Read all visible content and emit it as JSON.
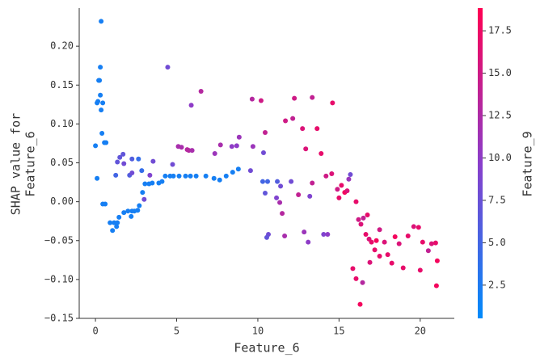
{
  "chart_data": {
    "type": "scatter",
    "xlabel": "Feature_6",
    "ylabel": [
      "SHAP value for",
      "Feature_6"
    ],
    "xlim": [
      -1.0,
      22.1
    ],
    "xticks": [
      0,
      5,
      10,
      15,
      20
    ],
    "ylim": [
      -0.15,
      0.249
    ],
    "yticks": [
      {
        "value": -0.15,
        "label": "−0.15"
      },
      {
        "value": -0.1,
        "label": "−0.10"
      },
      {
        "value": -0.05,
        "label": "−0.05"
      },
      {
        "value": 0,
        "label": "0.00"
      },
      {
        "value": 0.05,
        "label": "0.05"
      },
      {
        "value": 0.1,
        "label": "0.10"
      },
      {
        "value": 0.15,
        "label": "0.15"
      },
      {
        "value": 0.2,
        "label": "0.20"
      }
    ],
    "x": [
      0,
      0.1,
      0.15,
      0.2,
      0.25,
      0.3,
      0.35,
      0.3,
      0.35,
      0.45,
      0.4,
      0.55,
      0.65,
      0.1,
      0.45,
      0.6,
      0.9,
      1.15,
      1.05,
      1.35,
      1.3,
      1.45,
      1.75,
      2.0,
      2.2,
      2.25,
      2.4,
      2.6,
      2.7,
      2.9,
      3.05,
      3.3,
      3.5,
      3.9,
      4.1,
      4.3,
      4.6,
      4.8,
      5.15,
      5.55,
      5.85,
      6.2,
      6.8,
      7.3,
      7.65,
      8.05,
      8.45,
      8.8,
      1.5,
      1.7,
      1.35,
      1.25,
      2.1,
      1.75,
      2.25,
      2.65,
      2.25,
      2.85,
      3.0,
      3.35,
      3.55,
      4.45,
      4.75,
      5.1,
      5.3,
      5.65,
      5.9,
      5.75,
      6.5,
      5.95,
      7.35,
      7.7,
      8.4,
      8.7,
      8.85,
      9.65,
      9.55,
      9.7,
      10.2,
      10.35,
      10.45,
      10.3,
      10.6,
      10.45,
      10.65,
      10.55,
      11.2,
      11.4,
      11.15,
      11.35,
      11.5,
      11.7,
      11.65,
      12.05,
      12.25,
      12.15,
      12.5,
      12.75,
      12.95,
      13.2,
      13.35,
      13.35,
      12.85,
      13.1,
      13.65,
      13.9,
      14.05,
      14.3,
      14.2,
      14.55,
      14.6,
      14.9,
      15.0,
      15.15,
      15.35,
      15.5,
      15.6,
      15.7,
      15.85,
      16.05,
      16.35,
      16.5,
      16.45,
      16.3,
      16.65,
      16.85,
      17.0,
      17.3,
      17.5,
      17.8,
      18.0,
      18.25,
      18.45,
      18.7,
      18.95,
      19.25,
      19.6,
      19.9,
      20.15,
      20.5,
      20.7,
      20.95,
      21.0,
      21.05,
      20.0,
      16.9,
      17.5,
      16.05,
      16.2,
      16.75,
      17.2
    ],
    "values": [
      0.072,
      0.127,
      0.129,
      0.156,
      0.156,
      0.173,
      0.232,
      0.137,
      0.118,
      0.127,
      0.088,
      0.076,
      0.076,
      0.03,
      -0.003,
      -0.003,
      -0.027,
      -0.027,
      -0.037,
      -0.027,
      -0.032,
      -0.02,
      -0.014,
      -0.012,
      -0.019,
      -0.012,
      -0.012,
      -0.011,
      -0.005,
      0.012,
      0.023,
      0.023,
      0.024,
      0.024,
      0.026,
      0.033,
      0.033,
      0.033,
      0.033,
      0.033,
      0.033,
      0.033,
      0.033,
      0.03,
      0.028,
      0.033,
      0.038,
      0.042,
      0.057,
      0.061,
      0.051,
      0.034,
      0.034,
      0.049,
      0.055,
      0.055,
      0.037,
      0.04,
      0.003,
      0.034,
      0.052,
      0.173,
      0.048,
      0.071,
      0.07,
      0.067,
      0.124,
      0.066,
      0.142,
      0.066,
      0.062,
      0.073,
      0.071,
      0.072,
      0.083,
      0.132,
      0.04,
      0.071,
      0.13,
      0.063,
      0.089,
      0.026,
      0.026,
      0.011,
      -0.042,
      -0.046,
      0.026,
      0.02,
      0.005,
      -0.001,
      -0.015,
      0.104,
      -0.044,
      0.026,
      0.133,
      0.107,
      0.009,
      0.094,
      0.068,
      0.007,
      0.134,
      0.024,
      -0.039,
      -0.052,
      0.094,
      0.062,
      -0.042,
      -0.042,
      0.033,
      0.036,
      0.127,
      0.016,
      0.005,
      0.021,
      0.012,
      0.014,
      0.029,
      0.035,
      -0.086,
      -0.099,
      -0.029,
      -0.021,
      -0.104,
      -0.132,
      -0.042,
      -0.048,
      -0.052,
      -0.05,
      -0.036,
      -0.052,
      -0.068,
      -0.079,
      -0.045,
      -0.054,
      -0.085,
      -0.044,
      -0.032,
      -0.033,
      -0.052,
      -0.063,
      -0.054,
      -0.053,
      -0.108,
      -0.076,
      -0.088,
      -0.078,
      -0.07,
      0,
      -0.023,
      -0.017,
      -0.062
    ],
    "color_values": [
      2,
      2,
      2,
      2,
      2,
      2,
      2,
      2,
      2,
      2,
      2,
      2,
      2,
      2,
      2,
      2,
      2,
      2,
      2,
      2,
      2,
      2,
      2,
      2,
      2,
      2,
      2,
      2,
      2,
      2,
      2,
      2,
      2,
      2,
      2,
      2,
      2,
      2,
      2,
      2,
      2,
      2,
      2,
      2,
      2,
      2,
      2,
      2,
      7,
      7,
      7,
      5,
      6,
      8,
      6,
      4,
      8,
      4,
      8,
      9,
      8,
      8,
      8,
      12,
      12,
      13,
      10,
      13,
      13,
      12,
      11,
      12,
      10,
      10,
      11,
      13,
      8,
      11,
      15,
      8,
      14,
      5,
      5,
      7,
      8,
      7,
      6,
      8,
      9,
      12,
      13,
      15,
      12,
      8,
      15,
      14,
      14,
      16,
      16,
      9,
      14,
      14,
      11,
      10,
      17,
      17,
      9,
      10,
      15,
      16,
      17,
      15,
      17,
      17,
      18,
      16,
      11,
      8,
      17,
      17,
      16,
      14,
      13,
      18,
      17,
      16,
      17,
      18,
      15,
      16,
      17,
      17,
      18,
      16,
      17,
      17,
      16,
      17,
      17,
      14,
      16,
      17,
      18,
      18,
      17,
      16,
      17,
      17,
      15,
      17,
      17
    ],
    "colorbar": {
      "label": "Feature_9",
      "lim": [
        0.54,
        18.84
      ],
      "ticks": [
        2.5,
        {
          "value": 5,
          "label": "5.0"
        },
        7.5,
        {
          "value": 10,
          "label": "10.0"
        },
        12.5,
        {
          "value": 15,
          "label": "15.0"
        },
        17.5
      ],
      "colors": [
        "#008bfb",
        "#8a3ecb",
        "#ff0052"
      ]
    }
  }
}
